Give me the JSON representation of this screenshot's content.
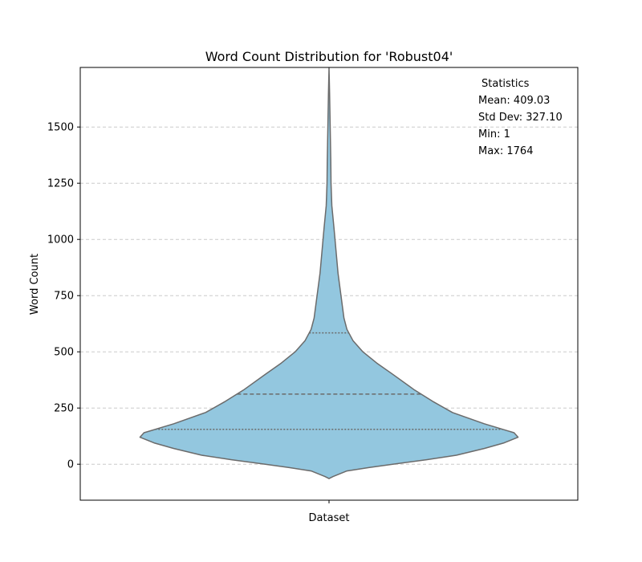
{
  "chart_data": {
    "type": "violin",
    "title": "Word Count Distribution for 'Robust04'",
    "xlabel": "",
    "ylabel": "Word Count",
    "categories": [
      "Dataset"
    ],
    "ylim": [
      -160,
      1765
    ],
    "yticks": [
      0,
      250,
      500,
      750,
      1000,
      1250,
      1500
    ],
    "grid": "horizontal dashed",
    "violin_color": "#93c7df",
    "edge_color": "#6b6b6b",
    "grid_color": "#cccccc",
    "quartiles": {
      "q1": 155,
      "median": 312,
      "q3": 584
    },
    "density_profile": [
      {
        "y": -64,
        "w": 0.0
      },
      {
        "y": -55,
        "w": 0.02
      },
      {
        "y": -30,
        "w": 0.09
      },
      {
        "y": -15,
        "w": 0.2
      },
      {
        "y": 0,
        "w": 0.32
      },
      {
        "y": 20,
        "w": 0.49
      },
      {
        "y": 40,
        "w": 0.64
      },
      {
        "y": 70,
        "w": 0.78
      },
      {
        "y": 95,
        "w": 0.88
      },
      {
        "y": 120,
        "w": 0.95
      },
      {
        "y": 140,
        "w": 0.93
      },
      {
        "y": 180,
        "w": 0.78
      },
      {
        "y": 230,
        "w": 0.62
      },
      {
        "y": 280,
        "w": 0.52
      },
      {
        "y": 330,
        "w": 0.43
      },
      {
        "y": 400,
        "w": 0.32
      },
      {
        "y": 450,
        "w": 0.24
      },
      {
        "y": 500,
        "w": 0.17
      },
      {
        "y": 550,
        "w": 0.12
      },
      {
        "y": 600,
        "w": 0.09
      },
      {
        "y": 650,
        "w": 0.075
      },
      {
        "y": 750,
        "w": 0.06
      },
      {
        "y": 850,
        "w": 0.045
      },
      {
        "y": 950,
        "w": 0.035
      },
      {
        "y": 1050,
        "w": 0.025
      },
      {
        "y": 1150,
        "w": 0.014
      },
      {
        "y": 1250,
        "w": 0.01
      },
      {
        "y": 1350,
        "w": 0.009
      },
      {
        "y": 1450,
        "w": 0.007
      },
      {
        "y": 1550,
        "w": 0.005
      },
      {
        "y": 1650,
        "w": 0.003
      },
      {
        "y": 1764,
        "w": 0.0
      }
    ],
    "annotation": {
      "heading": "Statistics",
      "lines": [
        "Mean: 409.03",
        "Std Dev: 327.10",
        "Min: 1",
        "Max: 1764"
      ]
    }
  }
}
